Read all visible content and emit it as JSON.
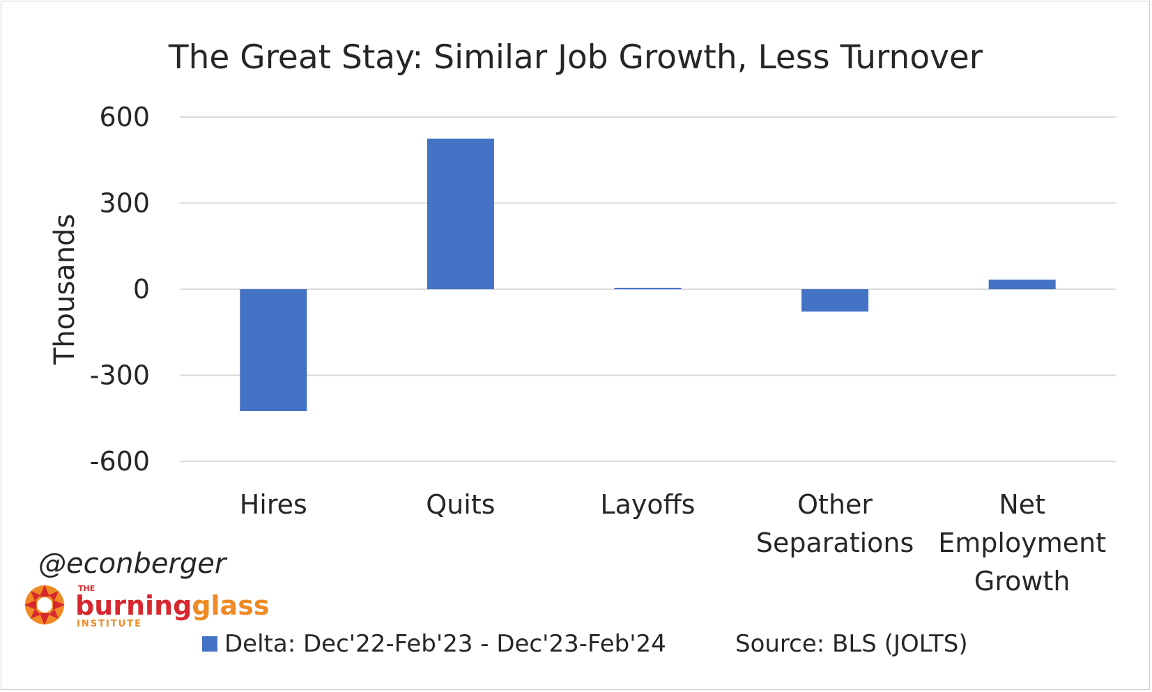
{
  "chart_data": {
    "type": "bar",
    "title": "The Great Stay: Similar Job Growth, Less Turnover",
    "ylabel": "Thousands",
    "xlabel": "",
    "ylim": [
      -600,
      600
    ],
    "yticks": [
      600,
      300,
      0,
      -300,
      -600
    ],
    "ytick_labels": [
      "600",
      "300",
      "0",
      "-300",
      "-600"
    ],
    "grid": true,
    "categories": [
      [
        "Hires"
      ],
      [
        "Quits"
      ],
      [
        "Layoffs"
      ],
      [
        "Other",
        "Separations"
      ],
      [
        "Net",
        "Employment",
        "Growth"
      ]
    ],
    "series": [
      {
        "name": "Delta: Dec'22-Feb'23 - Dec'23-Feb'24",
        "color": "#4472C4",
        "values": [
          -425,
          525,
          5,
          -78,
          33
        ]
      }
    ],
    "legend_position": "bottom",
    "source": "Source: BLS (JOLTS)"
  },
  "watermark": {
    "handle": "@econberger",
    "logo": {
      "top_word": "THE",
      "main_word_1": "burning",
      "main_word_2": "glass",
      "sub_word": "INSTITUTE",
      "icon": "sun-icon",
      "color_primary": "#D7282F",
      "color_secondary": "#F08A24"
    }
  }
}
